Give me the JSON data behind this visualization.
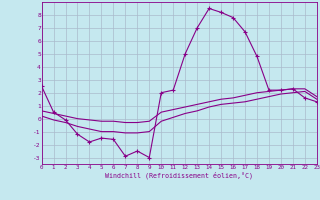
{
  "xlabel": "Windchill (Refroidissement éolien,°C)",
  "bg_color": "#c5e8ef",
  "line_color": "#880088",
  "grid_color": "#aabbcc",
  "xlim": [
    0,
    23
  ],
  "ylim": [
    -3.5,
    9.0
  ],
  "xticks": [
    0,
    1,
    2,
    3,
    4,
    5,
    6,
    7,
    8,
    9,
    10,
    11,
    12,
    13,
    14,
    15,
    16,
    17,
    18,
    19,
    20,
    21,
    22,
    23
  ],
  "yticks": [
    -3,
    -2,
    -1,
    0,
    1,
    2,
    3,
    4,
    5,
    6,
    7,
    8
  ],
  "series1_x": [
    0,
    1,
    2,
    3,
    4,
    5,
    6,
    7,
    8,
    9,
    10,
    11,
    12,
    13,
    14,
    15,
    16,
    17,
    18,
    19,
    20,
    21,
    22,
    23
  ],
  "series1_y": [
    2.5,
    0.5,
    -0.1,
    -1.2,
    -1.8,
    -1.5,
    -1.6,
    -2.9,
    -2.5,
    -3.0,
    2.0,
    2.2,
    5.0,
    7.0,
    8.5,
    8.2,
    7.8,
    6.7,
    4.8,
    2.2,
    2.2,
    2.3,
    1.6,
    1.3
  ],
  "series2_x": [
    0,
    1,
    2,
    3,
    4,
    5,
    6,
    7,
    8,
    9,
    10,
    11,
    12,
    13,
    14,
    15,
    16,
    17,
    18,
    19,
    20,
    21,
    22,
    23
  ],
  "series2_y": [
    0.6,
    0.4,
    0.2,
    0.0,
    -0.1,
    -0.2,
    -0.2,
    -0.3,
    -0.3,
    -0.2,
    0.5,
    0.7,
    0.9,
    1.1,
    1.3,
    1.5,
    1.6,
    1.8,
    2.0,
    2.1,
    2.2,
    2.3,
    2.3,
    1.7
  ],
  "series3_x": [
    0,
    1,
    2,
    3,
    4,
    5,
    6,
    7,
    8,
    9,
    10,
    11,
    12,
    13,
    14,
    15,
    16,
    17,
    18,
    19,
    20,
    21,
    22,
    23
  ],
  "series3_y": [
    0.2,
    -0.1,
    -0.3,
    -0.6,
    -0.8,
    -1.0,
    -1.0,
    -1.1,
    -1.1,
    -1.0,
    -0.2,
    0.1,
    0.4,
    0.6,
    0.9,
    1.1,
    1.2,
    1.3,
    1.5,
    1.7,
    1.9,
    2.0,
    2.1,
    1.5
  ]
}
